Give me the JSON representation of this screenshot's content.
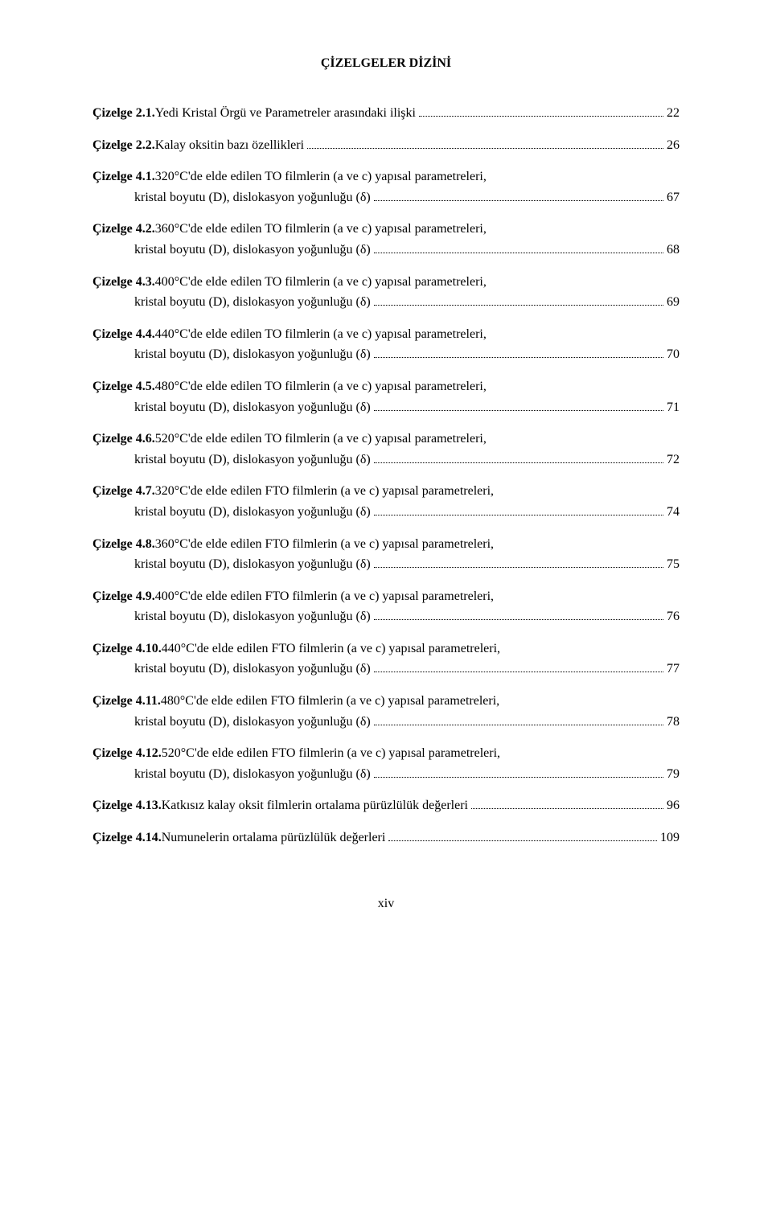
{
  "title": "ÇİZELGELER DİZİNİ",
  "footer": "xiv",
  "entries": [
    {
      "label": "Çizelge 2.1.",
      "lines": [
        "Yedi Kristal Örgü ve Parametreler arasındaki ilişki"
      ],
      "page": "22"
    },
    {
      "label": "Çizelge 2.2.",
      "lines": [
        "Kalay oksitin bazı özellikleri"
      ],
      "page": "26"
    },
    {
      "label": "Çizelge 4.1.",
      "lines": [
        "320°C'de elde edilen TO filmlerin (a ve c) yapısal parametreleri,",
        "kristal boyutu (D), dislokasyon yoğunluğu (δ)"
      ],
      "page": "67"
    },
    {
      "label": "Çizelge 4.2.",
      "lines": [
        "360°C'de elde edilen TO filmlerin (a ve c) yapısal parametreleri,",
        "kristal boyutu (D), dislokasyon yoğunluğu (δ)"
      ],
      "page": "68"
    },
    {
      "label": "Çizelge 4.3.",
      "lines": [
        "400°C'de elde edilen TO filmlerin (a ve c) yapısal parametreleri,",
        "kristal boyutu (D), dislokasyon yoğunluğu (δ)"
      ],
      "page": "69"
    },
    {
      "label": "Çizelge 4.4.",
      "lines": [
        "440°C'de elde edilen TO filmlerin (a ve c) yapısal parametreleri,",
        "kristal boyutu (D), dislokasyon yoğunluğu (δ)"
      ],
      "page": "70"
    },
    {
      "label": "Çizelge 4.5.",
      "lines": [
        "480°C'de elde edilen TO filmlerin (a ve c) yapısal parametreleri,",
        "kristal boyutu (D), dislokasyon yoğunluğu (δ)"
      ],
      "page": "71"
    },
    {
      "label": "Çizelge 4.6.",
      "lines": [
        "520°C'de elde edilen TO filmlerin (a ve c) yapısal parametreleri,",
        "kristal boyutu (D), dislokasyon yoğunluğu (δ)"
      ],
      "page": "72"
    },
    {
      "label": "Çizelge 4.7.",
      "lines": [
        "320°C'de elde edilen FTO filmlerin (a ve c) yapısal parametreleri,",
        "kristal boyutu (D), dislokasyon yoğunluğu (δ)"
      ],
      "page": "74"
    },
    {
      "label": "Çizelge 4.8.",
      "lines": [
        "360°C'de elde edilen FTO filmlerin (a ve c) yapısal parametreleri,",
        "kristal boyutu (D), dislokasyon yoğunluğu (δ)"
      ],
      "page": "75"
    },
    {
      "label": "Çizelge 4.9.",
      "lines": [
        "400°C'de elde edilen FTO filmlerin (a ve c) yapısal parametreleri,",
        "kristal boyutu (D), dislokasyon yoğunluğu (δ)"
      ],
      "page": "76"
    },
    {
      "label": "Çizelge 4.10.",
      "lines": [
        "440°C'de elde edilen FTO filmlerin (a ve c) yapısal parametreleri,",
        "kristal boyutu (D), dislokasyon yoğunluğu (δ)"
      ],
      "page": "77"
    },
    {
      "label": "Çizelge 4.11.",
      "lines": [
        "480°C'de elde edilen FTO filmlerin (a ve c) yapısal parametreleri,",
        "kristal boyutu (D), dislokasyon yoğunluğu (δ)"
      ],
      "page": "78"
    },
    {
      "label": "Çizelge 4.12.",
      "lines": [
        "520°C'de elde edilen FTO filmlerin (a ve c) yapısal parametreleri,",
        "kristal boyutu (D), dislokasyon yoğunluğu (δ)"
      ],
      "page": "79"
    },
    {
      "label": "Çizelge 4.13.",
      "lines": [
        "Katkısız kalay oksit filmlerin ortalama pürüzlülük değerleri"
      ],
      "page": "96"
    },
    {
      "label": "Çizelge 4.14.",
      "lines": [
        "Numunelerin ortalama pürüzlülük değerleri"
      ],
      "page": "109"
    }
  ]
}
